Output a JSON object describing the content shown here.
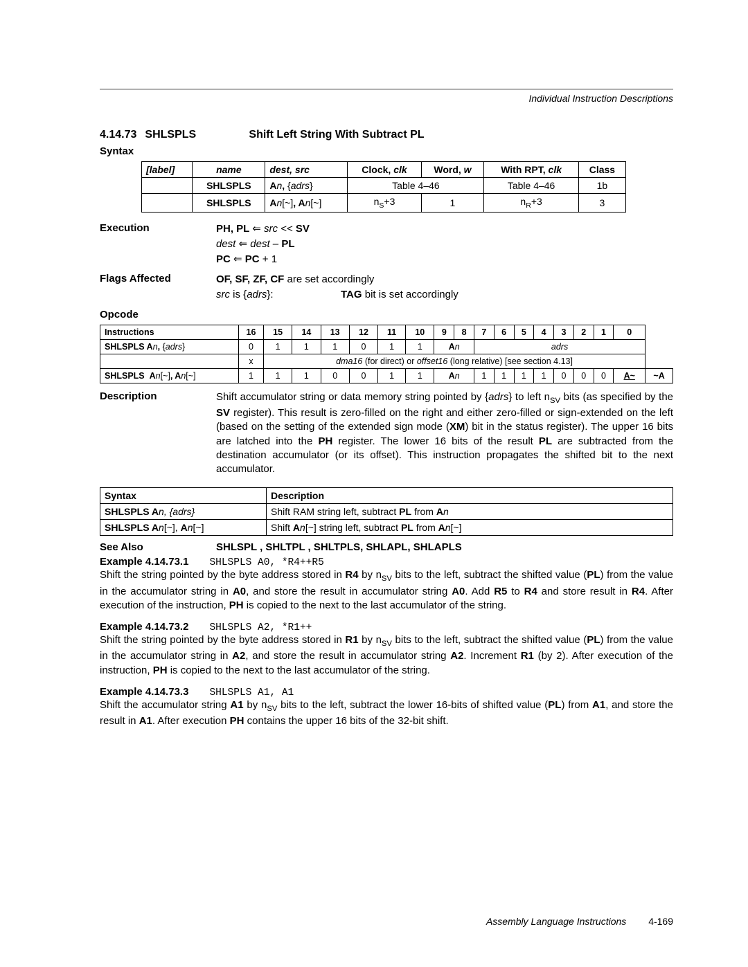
{
  "header": {
    "section_title": "Individual Instruction Descriptions"
  },
  "title": {
    "number": "4.14.73",
    "mnemonic": "SHLSPLS",
    "description": "Shift Left String With Subtract PL"
  },
  "syntax": {
    "heading": "Syntax",
    "columns": {
      "label": "[label]",
      "name": "name",
      "dest_src": "dest, src",
      "clock": "Clock",
      "clk": "clk",
      "word": "Word",
      "w": "w",
      "rpt": "With RPT",
      "class": "Class"
    },
    "rows": [
      {
        "name": "SHLSPLS",
        "dest": "An, {adrs}",
        "clock_span": "Table 4–46",
        "word": "",
        "rpt": "Table 4–46",
        "class": "1b"
      },
      {
        "name": "SHLSPLS",
        "dest": "An[~], An[~]",
        "clock": "nS+3",
        "word": "1",
        "rpt": "nR+3",
        "class": "3"
      }
    ]
  },
  "execution": {
    "label": "Execution",
    "line1_pre": "PH, PL ",
    "line1_mid": "  src << ",
    "line1_sv": "SV",
    "line2_a": "dest ",
    "line2_b": " dest – ",
    "line2_pl": "PL",
    "line3_a": "PC ",
    "line3_b": " PC",
    "line3_c": " + 1"
  },
  "flags": {
    "label": "Flags Affected",
    "line1_a": "OF, SF, ZF, CF",
    "line1_b": " are set accordingly",
    "line2_a": "src",
    "line2_b": " is {",
    "line2_c": "adrs",
    "line2_d": "}:",
    "line2_e": "TAG",
    "line2_f": " bit is set accordingly"
  },
  "opcode": {
    "heading": "Opcode",
    "header_instr": "Instructions",
    "bits": [
      "16",
      "15",
      "14",
      "13",
      "12",
      "11",
      "10",
      "9",
      "8",
      "7",
      "6",
      "5",
      "4",
      "3",
      "2",
      "1",
      "0"
    ],
    "row1_instr": "SHLSPLS An, {adrs}",
    "row1_bits": [
      "0",
      "1",
      "1",
      "1",
      "0",
      "1",
      "1"
    ],
    "row1_an": "An",
    "row1_adrs": "adrs",
    "row2_x": "x",
    "row2_note_a": "dma16",
    "row2_note_b": " (for direct) or ",
    "row2_note_c": "offset16",
    "row2_note_d": " (long relative) [see section 4.13]",
    "row3_instr": "SHLSPLS  An[~], An[~]",
    "row3_bits_a": [
      "1",
      "1",
      "1",
      "0",
      "0",
      "1",
      "1"
    ],
    "row3_an": "An",
    "row3_bits_b": [
      "1",
      "1",
      "1",
      "1",
      "0",
      "0",
      "0"
    ],
    "row3_a_tilde_u": "A~",
    "row3_tilde_a": "~A"
  },
  "description": {
    "label": "Description",
    "text_1": "Shift accumulator string or data memory string pointed by {",
    "text_2": "adrs",
    "text_3": "} to left n",
    "text_4": " bits (as specified by the ",
    "text_5": "SV",
    "text_6": " register). This result is zero-filled on the right and either zero-filled or sign-extended on the left (based on the setting of the extended sign mode (",
    "text_7": "XM",
    "text_8": ") bit in the status register). The upper 16 bits are latched into the ",
    "text_9": "PH",
    "text_10": " register. The lower 16 bits of the result ",
    "text_11": "PL",
    "text_12": " are subtracted from the destination accumulator (or its offset). This instruction propagates the shifted bit to the next accumulator."
  },
  "syntdesc": {
    "col_syntax": "Syntax",
    "col_desc": "Description",
    "r1_syn_a": "SHLSPLS A",
    "r1_syn_b": "n,",
    "r1_syn_c": " {adrs}",
    "r1_d_a": "Shift RAM string left, subtract ",
    "r1_d_b": "PL",
    "r1_d_c": " from ",
    "r1_d_d": "A",
    "r1_d_e": "n",
    "r2_syn_a": "SHLSPLS A",
    "r2_syn_b": "n",
    "r2_syn_c": "[~], ",
    "r2_syn_d": "A",
    "r2_syn_e": "n",
    "r2_syn_f": "[~]",
    "r2_d_a": "Shift ",
    "r2_d_b": "A",
    "r2_d_c": "n",
    "r2_d_d": "[~] string left, subtract ",
    "r2_d_e": "PL",
    "r2_d_f": " from ",
    "r2_d_g": "A",
    "r2_d_h": "n",
    "r2_d_i": "[~]"
  },
  "see_also": {
    "label": "See Also",
    "value": "SHLSPL , SHLTPL , SHLTPLS, SHLAPL, SHLAPLS"
  },
  "examples": [
    {
      "label": "Example 4.14.73.1",
      "code": "SHLSPLS A0, *R4++R5",
      "b_pre": "Shift the string pointed by the byte address stored in ",
      "b_r": "R4",
      "b_mid1": " by n",
      "b_mid2": " bits to the left, subtract the shifted value (",
      "b_pl": "PL",
      "b_mid3": ") from the value in the accumulator string in ",
      "b_a0a": "A0",
      "b_mid4": ", and store the result in accumulator string ",
      "b_a0b": "A0",
      "b_mid5": ". Add ",
      "b_r5": "R5",
      "b_mid6": " to ",
      "b_r4b": "R4",
      "b_mid7": " and store result in ",
      "b_r4c": "R4",
      "b_mid8": ". After execution of the instruction, ",
      "b_ph": "PH",
      "b_end": " is copied to the next to the last accumulator of the string."
    },
    {
      "label": "Example 4.14.73.2",
      "code": "SHLSPLS A2, *R1++",
      "b_pre": "Shift the string pointed by the byte address stored in ",
      "b_r": "R1",
      "b_mid1": " by n",
      "b_mid2": " bits to the left, subtract the shifted value (",
      "b_pl": "PL",
      "b_mid3": ") from the value in the accumulator string in ",
      "b_a0a": "A2",
      "b_mid4": ", and store the result in accumulator string ",
      "b_a0b": "A2",
      "b_mid5": ". Increment ",
      "b_r5": "R1",
      "b_mid6": " (by 2). After execution of the instruction, ",
      "b_r4b": "",
      "b_mid7": "",
      "b_r4c": "",
      "b_mid8": "",
      "b_ph": "PH",
      "b_end": " is copied to the next to the last accumulator of the string."
    },
    {
      "label": "Example 4.14.73.3",
      "code": "SHLSPLS A1, A1",
      "b_pre": "Shift the accumulator string ",
      "b_r": "A1",
      "b_mid1": " by n",
      "b_mid2": " bits to the left, subtract the lower 16-bits of shifted value (",
      "b_pl": "PL",
      "b_mid3": ") from ",
      "b_a0a": "A1",
      "b_mid4": ", and store the result in ",
      "b_a0b": "A1",
      "b_mid5": ". After execution ",
      "b_r5": "",
      "b_mid6": "",
      "b_r4b": "",
      "b_mid7": "",
      "b_r4c": "",
      "b_mid8": "",
      "b_ph": "PH",
      "b_end": " contains the upper 16 bits of the 32-bit shift."
    }
  ],
  "footer": {
    "title": "Assembly Language Instructions",
    "page": "4-169"
  }
}
